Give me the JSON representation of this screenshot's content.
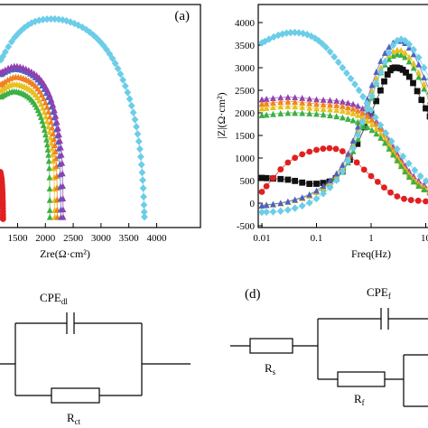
{
  "chart_data": [
    {
      "type": "scatter",
      "panel_label": "(a)",
      "xlabel": "Zre(Ω·cm²)",
      "xticks": [
        "1500",
        "2000",
        "2500",
        "3000",
        "3500",
        "4000"
      ],
      "xlim": [
        1200,
        4300
      ],
      "ylim": [
        0,
        2050
      ],
      "series": [
        {
          "color": "#e02020",
          "marker": "circle",
          "x": [
            1190,
            1215,
            1228,
            1235,
            1238
          ],
          "y": [
            500,
            420,
            300,
            170,
            40
          ]
        },
        {
          "color": "#3cb043",
          "marker": "triangle",
          "x": [
            1200,
            1400,
            1600,
            1780,
            1920,
            2020,
            2070,
            2080
          ],
          "y": [
            1240,
            1290,
            1270,
            1190,
            1040,
            820,
            540,
            60
          ]
        },
        {
          "color": "#e8c020",
          "marker": "triangle",
          "x": [
            1200,
            1400,
            1620,
            1820,
            1980,
            2090,
            2150,
            2170
          ],
          "y": [
            1300,
            1360,
            1340,
            1260,
            1090,
            840,
            540,
            60
          ]
        },
        {
          "color": "#f08020",
          "marker": "triangle",
          "x": [
            1200,
            1420,
            1650,
            1860,
            2030,
            2140,
            2200,
            2215
          ],
          "y": [
            1360,
            1430,
            1410,
            1320,
            1140,
            880,
            560,
            60
          ]
        },
        {
          "color": "#5060c0",
          "marker": "triangle",
          "x": [
            1200,
            1430,
            1680,
            1900,
            2080,
            2200,
            2260,
            2280
          ],
          "y": [
            1460,
            1510,
            1480,
            1380,
            1190,
            920,
            580,
            60
          ]
        },
        {
          "color": "#9040b0",
          "marker": "triangle",
          "x": [
            1200,
            1440,
            1700,
            1930,
            2110,
            2230,
            2300,
            2320
          ],
          "y": [
            1480,
            1540,
            1500,
            1400,
            1210,
            930,
            590,
            60
          ]
        },
        {
          "color": "#6ccde8",
          "marker": "diamond",
          "x": [
            1200,
            1450,
            1750,
            2100,
            2450,
            2800,
            3100,
            3350,
            3550,
            3680,
            3750,
            3780
          ],
          "y": [
            1600,
            1820,
            1960,
            2000,
            1970,
            1870,
            1700,
            1460,
            1150,
            800,
            420,
            60
          ]
        }
      ]
    },
    {
      "type": "line",
      "xlabel": "Freq(Hz)",
      "ylabel": "|Z|(Ω·cm²)",
      "xscale": "log",
      "xticks": [
        "0.01",
        "0.1",
        "1",
        "10"
      ],
      "yticks": [
        "-500",
        "0",
        "500",
        "1000",
        "1500",
        "2000",
        "2500",
        "3000",
        "3500",
        "4000"
      ],
      "xlim": [
        0.01,
        40
      ],
      "ylim": [
        -500,
        4050
      ],
      "series": [
        {
          "color": "#111111",
          "marker": "square",
          "x": [
            0.01,
            0.03,
            0.1,
            0.3,
            1,
            2,
            3,
            5,
            10,
            20,
            40
          ],
          "y": [
            560,
            520,
            430,
            700,
            2000,
            2850,
            3000,
            2800,
            2100,
            1400,
            900
          ]
        },
        {
          "color": "#e02020",
          "marker": "circle",
          "x": [
            0.01,
            0.03,
            0.1,
            0.3,
            1,
            3,
            10,
            40
          ],
          "y": [
            250,
            900,
            1180,
            1150,
            600,
            150,
            40,
            10
          ]
        },
        {
          "color": "#3cb043",
          "marker": "triangle",
          "x": [
            0.01,
            0.03,
            0.1,
            0.3,
            0.7,
            1.5,
            3,
            6,
            15,
            40
          ],
          "y": [
            -50,
            30,
            250,
            700,
            1700,
            2900,
            3300,
            3000,
            2000,
            1100
          ]
        },
        {
          "color": "#e8c020",
          "marker": "triangle",
          "x": [
            0.01,
            0.03,
            0.1,
            0.3,
            0.7,
            1.5,
            3,
            6,
            15,
            40
          ],
          "y": [
            -50,
            30,
            250,
            800,
            1900,
            3000,
            3400,
            3100,
            2100,
            1200
          ]
        },
        {
          "color": "#5060c0",
          "marker": "triangle",
          "x": [
            0.01,
            0.03,
            0.1,
            0.3,
            0.7,
            1.5,
            3,
            6,
            15,
            40
          ],
          "y": [
            -50,
            40,
            280,
            850,
            2000,
            3150,
            3600,
            3300,
            2200,
            1300
          ]
        },
        {
          "color": "#9040b0",
          "marker": "triangle",
          "x": [
            0.01,
            0.03,
            0.1,
            0.3,
            0.7,
            1.5,
            3,
            6,
            15,
            40
          ],
          "y": [
            2300,
            2350,
            2300,
            2250,
            2100,
            1700,
            1100,
            600,
            250,
            80
          ]
        },
        {
          "color": "#f08020",
          "marker": "triangle",
          "x": [
            0.01,
            0.03,
            0.1,
            0.3,
            0.7,
            1.5,
            3,
            6,
            15,
            40
          ],
          "y": [
            2200,
            2250,
            2200,
            2150,
            2000,
            1650,
            1050,
            550,
            220,
            70
          ]
        },
        {
          "color": "#e8c020",
          "marker": "triangle",
          "x": [
            0.01,
            0.03,
            0.1,
            0.3,
            0.7,
            1.5,
            3,
            6,
            15,
            40
          ],
          "y": [
            2100,
            2150,
            2100,
            2050,
            1900,
            1550,
            1000,
            520,
            200,
            60
          ]
        },
        {
          "color": "#3cb043",
          "marker": "triangle",
          "x": [
            0.01,
            0.03,
            0.1,
            0.3,
            0.7,
            1.5,
            3,
            6,
            15,
            40
          ],
          "y": [
            1950,
            2000,
            1980,
            1900,
            1750,
            1450,
            950,
            480,
            180,
            60
          ]
        },
        {
          "color": "#6ccde8",
          "marker": "diamond",
          "x": [
            0.01,
            0.02,
            0.04,
            0.08,
            0.15,
            0.3,
            0.6,
            1.2,
            3,
            8,
            20,
            40
          ],
          "y": [
            3550,
            3720,
            3780,
            3700,
            3450,
            3000,
            2500,
            1900,
            1200,
            600,
            250,
            120
          ]
        },
        {
          "color": "#6ccde8",
          "marker": "diamond",
          "x": [
            0.01,
            0.03,
            0.1,
            0.3,
            0.7,
            1.5,
            3,
            6,
            15,
            40
          ],
          "y": [
            -200,
            -150,
            100,
            700,
            1800,
            2900,
            3600,
            3400,
            2500,
            1500
          ]
        }
      ]
    }
  ],
  "circuits": [
    {
      "panel_label": "",
      "cpe_main": "CPE",
      "cpe_sub": "dl",
      "r_main": "R",
      "r_sub": "ct"
    },
    {
      "panel_label": "(d)",
      "cpe_main": "CPE",
      "cpe_sub": "f",
      "rs_main": "R",
      "rs_sub": "s",
      "rf_main": "R",
      "rf_sub": "f"
    }
  ]
}
